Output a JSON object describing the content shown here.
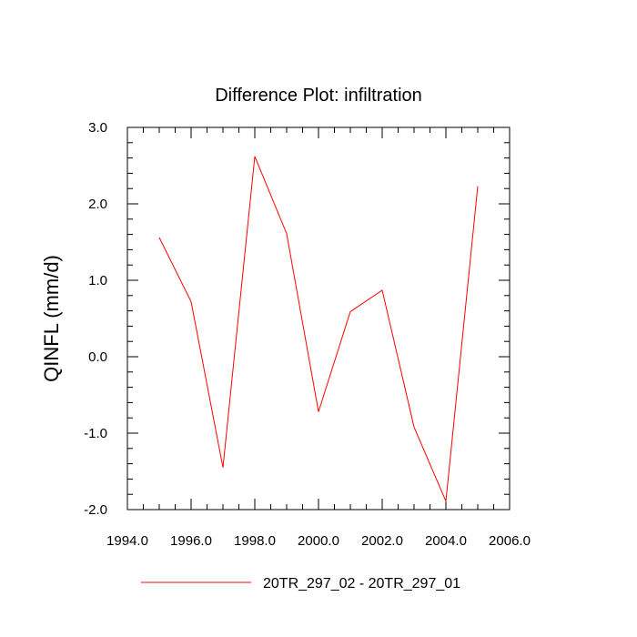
{
  "chart_data": {
    "type": "line",
    "title": "Difference Plot: infiltration",
    "xlabel": "",
    "ylabel": "QINFL  (mm/d)",
    "xlim": [
      1994.0,
      2006.0
    ],
    "ylim": [
      -2.0,
      3.0
    ],
    "x_ticks": [
      "1994.0",
      "1996.0",
      "1998.0",
      "2000.0",
      "2002.0",
      "2004.0",
      "2006.0"
    ],
    "y_ticks": [
      "3.0",
      "2.0",
      "1.0",
      "0.0",
      "-1.0",
      "-2.0"
    ],
    "series": [
      {
        "name": "20TR_297_02 - 20TR_297_01",
        "color": "#ff0000",
        "x": [
          1995,
          1996,
          1997,
          1998,
          1999,
          2000,
          2001,
          2002,
          2003,
          2004,
          2005
        ],
        "y": [
          1.56,
          0.72,
          -1.45,
          2.62,
          1.61,
          -0.72,
          0.59,
          0.87,
          -0.92,
          -1.89,
          2.23
        ]
      }
    ],
    "legend_position": "bottom-center",
    "grid": false
  }
}
